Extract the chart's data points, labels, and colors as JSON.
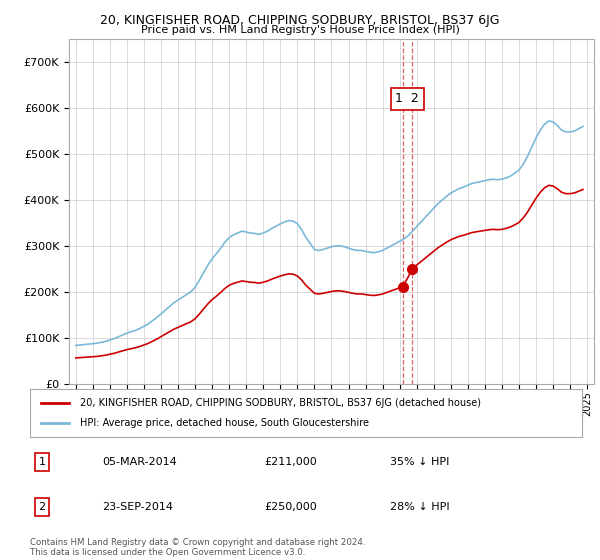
{
  "title": "20, KINGFISHER ROAD, CHIPPING SODBURY, BRISTOL, BS37 6JG",
  "subtitle": "Price paid vs. HM Land Registry's House Price Index (HPI)",
  "hpi_color": "#7ab8d9",
  "price_color": "#cc0000",
  "dashed_color": "#cc0000",
  "annotation_color": "#cc0000",
  "transaction1": {
    "date": "05-MAR-2014",
    "price": "£211,000",
    "pct": "35% ↓ HPI",
    "label": "1",
    "year": 2014.17
  },
  "transaction2": {
    "date": "23-SEP-2014",
    "price": "£250,000",
    "pct": "28% ↓ HPI",
    "label": "2",
    "year": 2014.73
  },
  "transaction1_y": 211000,
  "transaction2_y": 250000,
  "legend1": "20, KINGFISHER ROAD, CHIPPING SODBURY, BRISTOL, BS37 6JG (detached house)",
  "legend2": "HPI: Average price, detached house, South Gloucestershire",
  "footer": "Contains HM Land Registry data © Crown copyright and database right 2024.\nThis data is licensed under the Open Government Licence v3.0.",
  "ylim": [
    0,
    750000
  ],
  "yticks": [
    0,
    100000,
    200000,
    300000,
    400000,
    500000,
    600000,
    700000
  ],
  "ytick_labels": [
    "£0",
    "£100K",
    "£200K",
    "£300K",
    "£400K",
    "£500K",
    "£600K",
    "£700K"
  ],
  "xlim_min": 1994.6,
  "xlim_max": 2025.4,
  "background_color": "#ffffff",
  "grid_color": "#cccccc",
  "hpi_years": [
    1995.0,
    1995.25,
    1995.5,
    1995.75,
    1996.0,
    1996.25,
    1996.5,
    1996.75,
    1997.0,
    1997.25,
    1997.5,
    1997.75,
    1998.0,
    1998.25,
    1998.5,
    1998.75,
    1999.0,
    1999.25,
    1999.5,
    1999.75,
    2000.0,
    2000.25,
    2000.5,
    2000.75,
    2001.0,
    2001.25,
    2001.5,
    2001.75,
    2002.0,
    2002.25,
    2002.5,
    2002.75,
    2003.0,
    2003.25,
    2003.5,
    2003.75,
    2004.0,
    2004.25,
    2004.5,
    2004.75,
    2005.0,
    2005.25,
    2005.5,
    2005.75,
    2006.0,
    2006.25,
    2006.5,
    2006.75,
    2007.0,
    2007.25,
    2007.5,
    2007.75,
    2008.0,
    2008.25,
    2008.5,
    2008.75,
    2009.0,
    2009.25,
    2009.5,
    2009.75,
    2010.0,
    2010.25,
    2010.5,
    2010.75,
    2011.0,
    2011.25,
    2011.5,
    2011.75,
    2012.0,
    2012.25,
    2012.5,
    2012.75,
    2013.0,
    2013.25,
    2013.5,
    2013.75,
    2014.0,
    2014.25,
    2014.5,
    2014.75,
    2015.0,
    2015.25,
    2015.5,
    2015.75,
    2016.0,
    2016.25,
    2016.5,
    2016.75,
    2017.0,
    2017.25,
    2017.5,
    2017.75,
    2018.0,
    2018.25,
    2018.5,
    2018.75,
    2019.0,
    2019.25,
    2019.5,
    2019.75,
    2020.0,
    2020.25,
    2020.5,
    2020.75,
    2021.0,
    2021.25,
    2021.5,
    2021.75,
    2022.0,
    2022.25,
    2022.5,
    2022.75,
    2023.0,
    2023.25,
    2023.5,
    2023.75,
    2024.0,
    2024.25,
    2024.5,
    2024.75
  ],
  "hpi_vals": [
    83000,
    84000,
    85000,
    86000,
    87000,
    88000,
    90000,
    92000,
    95000,
    98000,
    102000,
    106000,
    110000,
    113000,
    116000,
    120000,
    125000,
    130000,
    137000,
    144000,
    152000,
    160000,
    168000,
    176000,
    182000,
    188000,
    194000,
    200000,
    210000,
    225000,
    242000,
    258000,
    272000,
    283000,
    295000,
    308000,
    318000,
    324000,
    328000,
    332000,
    330000,
    328000,
    327000,
    325000,
    328000,
    332000,
    338000,
    343000,
    348000,
    352000,
    355000,
    354000,
    348000,
    335000,
    318000,
    305000,
    292000,
    290000,
    292000,
    295000,
    298000,
    300000,
    300000,
    298000,
    295000,
    292000,
    290000,
    290000,
    288000,
    286000,
    285000,
    287000,
    290000,
    295000,
    300000,
    305000,
    310000,
    315000,
    322000,
    332000,
    342000,
    352000,
    362000,
    372000,
    382000,
    392000,
    400000,
    408000,
    415000,
    420000,
    425000,
    428000,
    432000,
    436000,
    438000,
    440000,
    442000,
    444000,
    445000,
    444000,
    445000,
    448000,
    452000,
    458000,
    465000,
    478000,
    495000,
    515000,
    535000,
    552000,
    565000,
    572000,
    570000,
    562000,
    552000,
    548000,
    548000,
    550000,
    555000,
    560000
  ]
}
